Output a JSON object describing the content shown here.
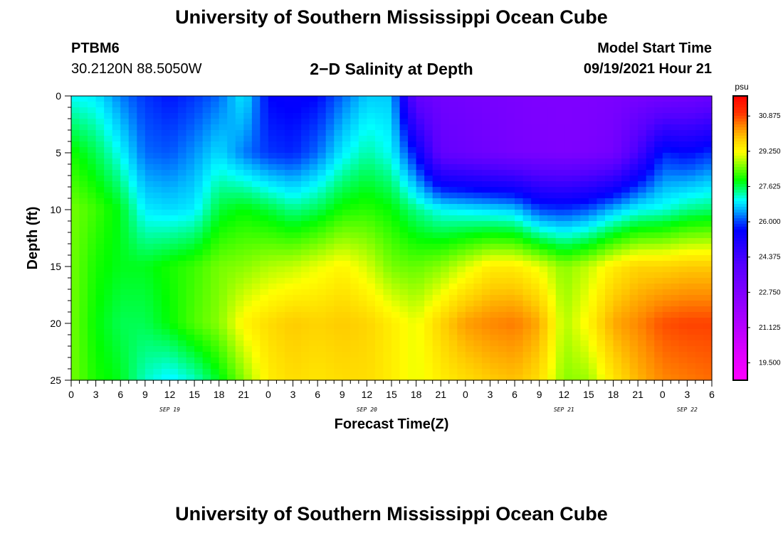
{
  "page": {
    "title_top": "University of Southern Mississippi Ocean Cube",
    "title_bottom": "University of Southern Mississippi Ocean Cube",
    "station_id": "PTBM6",
    "station_coords": "30.2120N  88.5050W",
    "chart_title": "2−D Salinity at Depth",
    "model_start_label": "Model Start Time",
    "model_start_value": "09/19/2021 Hour 21"
  },
  "chart_data": {
    "type": "heatmap",
    "title": "2−D Salinity at Depth",
    "xlabel": "Forecast Time(Z)",
    "ylabel": "Depth (ft)",
    "colorbar_unit": "psu",
    "x_ticks": [
      "0",
      "3",
      "6",
      "9",
      "12",
      "15",
      "18",
      "21",
      "0",
      "3",
      "6",
      "9",
      "12",
      "15",
      "18",
      "21",
      "0",
      "3",
      "6",
      "9",
      "12",
      "15",
      "18",
      "21",
      "0",
      "3",
      "6"
    ],
    "date_labels": [
      {
        "label": "SEP 19",
        "hour_index": 12
      },
      {
        "label": "SEP 20",
        "hour_index": 36
      },
      {
        "label": "SEP 21",
        "hour_index": 60
      },
      {
        "label": "SEP 22",
        "hour_index": 75
      }
    ],
    "x_range_hours": [
      0,
      78
    ],
    "y_ticks": [
      0,
      5,
      10,
      15,
      20,
      25
    ],
    "ylim": [
      0,
      25
    ],
    "depths": [
      0,
      5,
      10,
      15,
      20,
      25
    ],
    "columns": [
      {
        "hour": 0,
        "values": [
          27.0,
          28.0,
          28.5,
          28.5,
          28.5,
          28.5
        ]
      },
      {
        "hour": 3,
        "values": [
          26.9,
          27.6,
          28.2,
          28.0,
          27.9,
          28.0
        ]
      },
      {
        "hour": 6,
        "values": [
          26.3,
          27.0,
          27.8,
          27.8,
          27.6,
          27.8
        ]
      },
      {
        "hour": 9,
        "values": [
          25.9,
          26.2,
          26.9,
          27.8,
          27.6,
          27.2
        ]
      },
      {
        "hour": 12,
        "values": [
          25.7,
          26.1,
          26.8,
          28.0,
          27.9,
          26.9
        ]
      },
      {
        "hour": 15,
        "values": [
          25.9,
          26.4,
          26.9,
          28.2,
          28.3,
          27.2
        ]
      },
      {
        "hour": 18,
        "values": [
          26.2,
          26.8,
          27.7,
          28.5,
          28.6,
          27.8
        ]
      },
      {
        "hour": 21,
        "values": [
          26.9,
          26.3,
          27.9,
          28.6,
          29.3,
          28.6
        ]
      },
      {
        "hour": 24,
        "values": [
          25.6,
          25.9,
          27.7,
          28.8,
          29.6,
          29.4
        ]
      },
      {
        "hour": 27,
        "values": [
          25.5,
          25.8,
          27.4,
          28.9,
          29.8,
          29.6
        ]
      },
      {
        "hour": 30,
        "values": [
          25.6,
          26.2,
          27.6,
          29.1,
          29.7,
          29.5
        ]
      },
      {
        "hour": 33,
        "values": [
          26.2,
          26.9,
          28.0,
          29.3,
          29.8,
          29.6
        ]
      },
      {
        "hour": 36,
        "values": [
          26.7,
          27.3,
          28.1,
          29.0,
          29.7,
          29.6
        ]
      },
      {
        "hour": 39,
        "values": [
          26.7,
          27.0,
          27.9,
          28.5,
          29.4,
          29.4
        ]
      },
      {
        "hour": 42,
        "values": [
          23.6,
          25.6,
          27.4,
          28.4,
          29.1,
          29.1
        ]
      },
      {
        "hour": 45,
        "values": [
          23.2,
          23.6,
          27.0,
          28.6,
          29.7,
          29.4
        ]
      },
      {
        "hour": 48,
        "values": [
          23.1,
          23.4,
          26.9,
          29.0,
          30.2,
          29.6
        ]
      },
      {
        "hour": 51,
        "values": [
          23.0,
          23.2,
          26.8,
          29.4,
          30.4,
          29.8
        ]
      },
      {
        "hour": 54,
        "values": [
          22.9,
          23.0,
          26.7,
          29.4,
          30.5,
          29.9
        ]
      },
      {
        "hour": 57,
        "values": [
          22.8,
          22.9,
          26.0,
          29.1,
          30.1,
          29.6
        ]
      },
      {
        "hour": 60,
        "values": [
          22.8,
          22.8,
          25.9,
          28.6,
          28.8,
          28.6
        ]
      },
      {
        "hour": 63,
        "values": [
          22.8,
          22.9,
          26.1,
          28.9,
          29.3,
          28.7
        ]
      },
      {
        "hour": 66,
        "values": [
          22.9,
          23.1,
          26.6,
          29.4,
          30.1,
          29.5
        ]
      },
      {
        "hour": 69,
        "values": [
          23.0,
          24.3,
          27.0,
          29.7,
          30.4,
          30.0
        ]
      },
      {
        "hour": 72,
        "values": [
          23.1,
          25.8,
          27.1,
          29.7,
          30.8,
          30.4
        ]
      },
      {
        "hour": 75,
        "values": [
          23.2,
          25.6,
          27.4,
          29.8,
          30.9,
          30.5
        ]
      },
      {
        "hour": 78,
        "values": [
          23.4,
          25.9,
          27.5,
          29.8,
          30.9,
          30.6
        ]
      }
    ],
    "colorbar": {
      "min": 18.7,
      "max": 31.8,
      "tick_values": [
        "30.875",
        "29.250",
        "27.625",
        "26.000",
        "24.375",
        "22.750",
        "21.125",
        "19.500"
      ],
      "stops": [
        {
          "v": 18.7,
          "c": "#ff00ff"
        },
        {
          "v": 20.0,
          "c": "#dd00ff"
        },
        {
          "v": 22.0,
          "c": "#9900ff"
        },
        {
          "v": 24.0,
          "c": "#5500ff"
        },
        {
          "v": 25.6,
          "c": "#0000ff"
        },
        {
          "v": 26.1,
          "c": "#0055ff"
        },
        {
          "v": 26.6,
          "c": "#00bbff"
        },
        {
          "v": 27.0,
          "c": "#00ffff"
        },
        {
          "v": 27.4,
          "c": "#00ff88"
        },
        {
          "v": 27.9,
          "c": "#00ff00"
        },
        {
          "v": 28.6,
          "c": "#88ff00"
        },
        {
          "v": 29.2,
          "c": "#ffff00"
        },
        {
          "v": 29.8,
          "c": "#ffcc00"
        },
        {
          "v": 30.4,
          "c": "#ff8800"
        },
        {
          "v": 31.0,
          "c": "#ff3300"
        },
        {
          "v": 31.8,
          "c": "#ff0000"
        }
      ]
    }
  }
}
